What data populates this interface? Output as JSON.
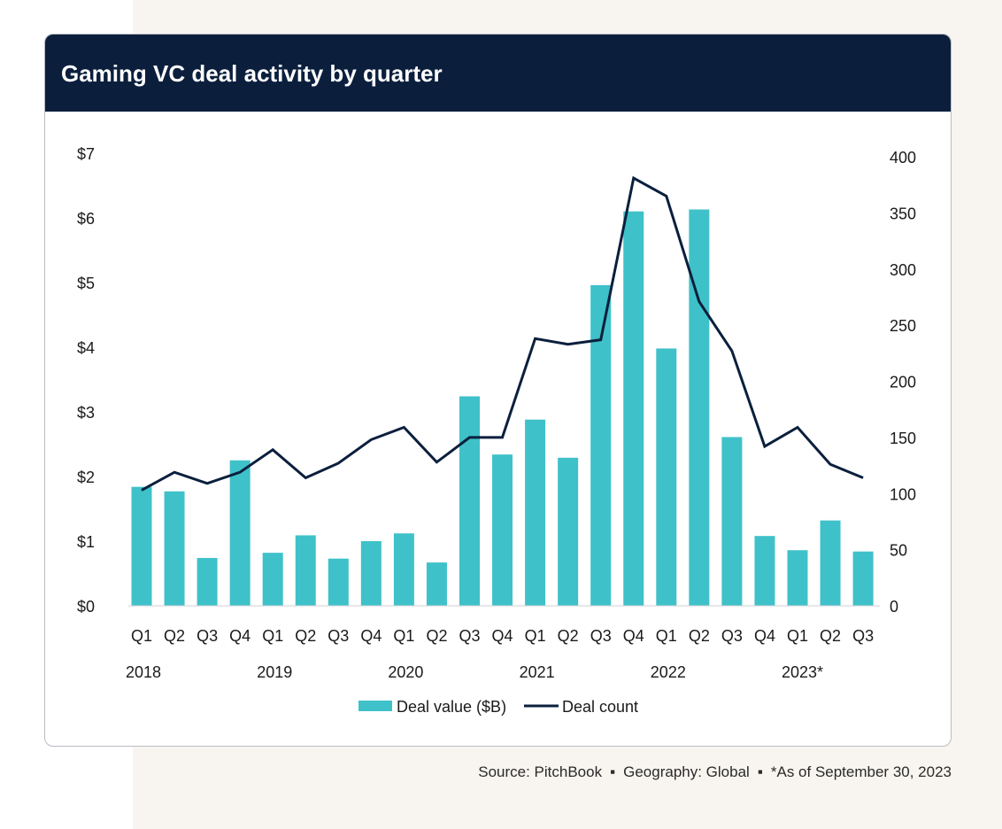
{
  "colors": {
    "background": "#f8f5f0",
    "card": "#ffffff",
    "header": "#0b1f3d",
    "bar": "#3fc1c9",
    "line": "#0b1f3d"
  },
  "chart_data": {
    "type": "bar",
    "title": "Gaming VC deal activity by quarter",
    "categories": [
      "Q1",
      "Q2",
      "Q3",
      "Q4",
      "Q1",
      "Q2",
      "Q3",
      "Q4",
      "Q1",
      "Q2",
      "Q3",
      "Q4",
      "Q1",
      "Q2",
      "Q3",
      "Q4",
      "Q1",
      "Q2",
      "Q3",
      "Q4",
      "Q1",
      "Q2",
      "Q3"
    ],
    "years": [
      {
        "label": "2018",
        "start": 0
      },
      {
        "label": "2019",
        "start": 4
      },
      {
        "label": "2020",
        "start": 8
      },
      {
        "label": "2021",
        "start": 12
      },
      {
        "label": "2022",
        "start": 16
      },
      {
        "label": "2023*",
        "start": 20
      }
    ],
    "series": [
      {
        "name": "Deal value ($B)",
        "type": "bar",
        "axis": "left",
        "values": [
          1.84,
          1.77,
          0.74,
          2.25,
          0.82,
          1.09,
          0.73,
          1.0,
          1.12,
          0.67,
          3.24,
          2.34,
          2.88,
          2.29,
          4.96,
          6.1,
          3.98,
          6.13,
          2.61,
          1.08,
          0.86,
          1.32,
          0.84
        ]
      },
      {
        "name": "Deal count",
        "type": "line",
        "axis": "right",
        "values": [
          103,
          119,
          109,
          119,
          139,
          114,
          127,
          148,
          159,
          128,
          150,
          150,
          238,
          233,
          237,
          381,
          365,
          271,
          227,
          142,
          159,
          126,
          114
        ]
      }
    ],
    "y_left": {
      "ticks": [
        "$0",
        "$1",
        "$2",
        "$3",
        "$4",
        "$5",
        "$6",
        "$7"
      ],
      "min": 0,
      "max": 7
    },
    "y_right": {
      "ticks": [
        "0",
        "50",
        "100",
        "150",
        "200",
        "250",
        "300",
        "350",
        "400"
      ],
      "min": 0,
      "max": 400
    },
    "grid": false,
    "legend_position": "bottom-center"
  },
  "source": {
    "source": "Source: PitchBook",
    "geography": "Geography: Global",
    "note": "*As of September 30, 2023",
    "separator": "▪"
  }
}
